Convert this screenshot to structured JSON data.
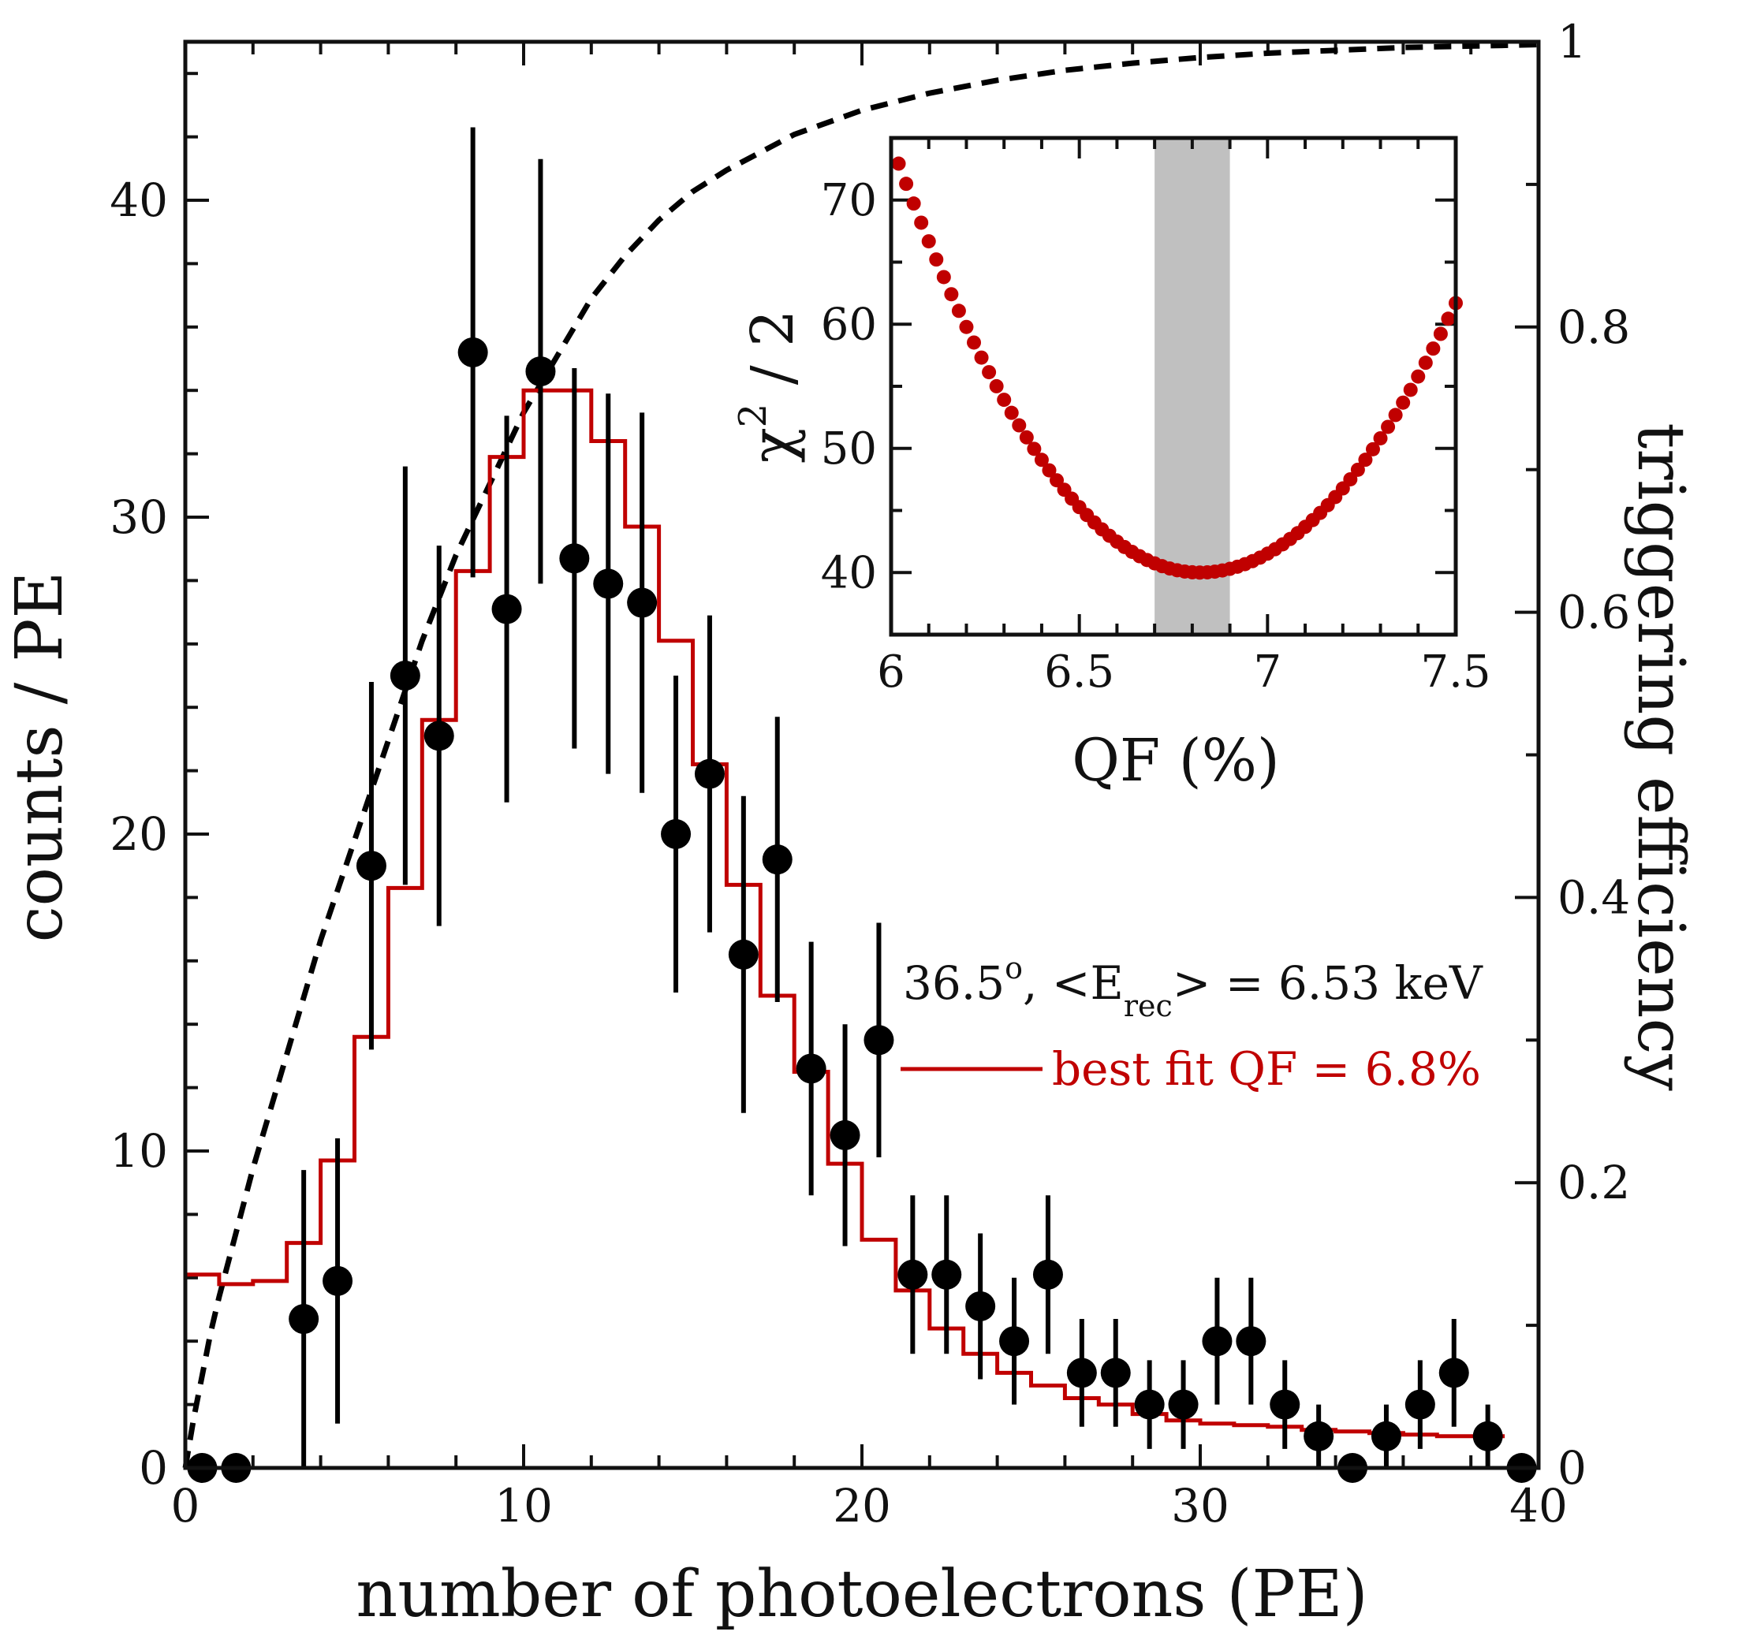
{
  "chart_data": [
    {
      "id": "main",
      "type": "scatter",
      "xlabel": "number of photoelectrons (PE)",
      "ylabel": "counts / PE",
      "y2label": "triggering efficiency",
      "xlim": [
        0,
        40
      ],
      "ylim": [
        0,
        45
      ],
      "y2lim": [
        0,
        1
      ],
      "xticks": [
        "0",
        "10",
        "20",
        "30",
        "40"
      ],
      "yticks": [
        "0",
        "10",
        "20",
        "30",
        "40"
      ],
      "y2ticks": [
        "0",
        "0.2",
        "0.4",
        "0.6",
        "0.8",
        "1"
      ],
      "annotation": {
        "prefix": "36.5",
        "degree": "o",
        "mid": ", <E",
        "sub": "rec",
        "suffix": ">  = 6.53 keV"
      },
      "legend_label": "best fit QF = 6.8%",
      "colors": {
        "fit": "#c00000",
        "data": "#000000",
        "efficiency": "#000000"
      },
      "series": [
        {
          "name": "data",
          "type": "scatter_errorbar",
          "x": [
            0.5,
            1.5,
            3.5,
            4.5,
            5.5,
            6.5,
            7.5,
            8.5,
            9.5,
            10.5,
            11.5,
            12.5,
            13.5,
            14.5,
            15.5,
            16.5,
            17.5,
            18.5,
            19.5,
            20.5,
            21.5,
            22.5,
            23.5,
            24.5,
            25.5,
            26.5,
            27.5,
            28.5,
            29.5,
            30.5,
            31.5,
            32.5,
            33.5,
            34.5,
            35.5,
            36.5,
            37.5,
            38.5,
            39.5
          ],
          "y": [
            0,
            0,
            4.7,
            5.9,
            19.0,
            25.0,
            23.1,
            35.2,
            27.1,
            34.6,
            28.7,
            27.9,
            27.3,
            20.0,
            21.9,
            16.2,
            19.2,
            12.6,
            10.5,
            13.5,
            6.1,
            6.1,
            5.1,
            4.0,
            6.1,
            3.0,
            3.0,
            2.0,
            2.0,
            4.0,
            4.0,
            2.0,
            1.0,
            0,
            1.0,
            2.0,
            3.0,
            1.0,
            0
          ],
          "yerr": [
            0,
            0,
            4.7,
            4.5,
            5.8,
            6.6,
            6.0,
            7.1,
            6.1,
            6.7,
            6.0,
            6.0,
            6.0,
            5.0,
            5.0,
            5.0,
            4.5,
            4.0,
            3.5,
            3.7,
            2.5,
            2.5,
            2.3,
            2.0,
            2.5,
            1.7,
            1.7,
            1.4,
            1.4,
            2.0,
            2.0,
            1.4,
            1.0,
            0,
            1.0,
            1.4,
            1.7,
            1.0,
            0
          ]
        },
        {
          "name": "best fit QF = 6.8%",
          "type": "step",
          "edges": [
            0,
            1,
            2,
            3,
            4,
            5,
            6,
            7,
            8,
            9,
            10,
            11,
            12,
            13,
            14,
            15,
            16,
            17,
            18,
            19,
            20,
            21,
            22,
            23,
            24,
            25,
            26,
            27,
            28,
            29,
            30,
            31,
            32,
            33,
            34,
            35,
            36,
            37,
            38,
            39
          ],
          "values": [
            6.1,
            5.8,
            5.9,
            7.1,
            9.7,
            13.6,
            18.3,
            23.6,
            28.3,
            31.9,
            34.0,
            34.0,
            32.4,
            29.7,
            26.1,
            22.2,
            18.4,
            14.9,
            12.5,
            9.6,
            7.2,
            5.6,
            4.4,
            3.6,
            3.0,
            2.6,
            2.2,
            2.0,
            1.7,
            1.5,
            1.4,
            1.35,
            1.3,
            1.2,
            1.15,
            1.1,
            1.05,
            1.0,
            1.0
          ]
        },
        {
          "name": "triggering efficiency",
          "type": "line_dashed",
          "axis": "y2",
          "x": [
            0,
            0.25,
            0.5,
            0.75,
            1,
            1.5,
            2,
            3,
            4,
            5,
            6,
            7,
            8,
            9,
            10,
            11,
            12,
            13,
            14,
            15,
            16,
            18,
            20,
            22,
            24,
            26,
            28,
            30,
            32,
            34,
            36,
            38,
            40
          ],
          "y": [
            0,
            0.035,
            0.065,
            0.095,
            0.12,
            0.165,
            0.21,
            0.29,
            0.37,
            0.44,
            0.51,
            0.58,
            0.64,
            0.69,
            0.74,
            0.78,
            0.82,
            0.85,
            0.875,
            0.895,
            0.91,
            0.935,
            0.952,
            0.964,
            0.973,
            0.98,
            0.985,
            0.989,
            0.992,
            0.994,
            0.996,
            0.997,
            0.998
          ]
        }
      ]
    },
    {
      "id": "inset",
      "type": "scatter",
      "xlabel": "QF (%)",
      "ylabel_main": "χ",
      "ylabel_sup": "2",
      "ylabel_tail": " / 2",
      "xlim": [
        6,
        7.5
      ],
      "ylim": [
        35,
        75
      ],
      "xticks": [
        "6",
        "6.5",
        "7",
        "7.5"
      ],
      "yticks": [
        "40",
        "50",
        "60",
        "70"
      ],
      "shaded_band": [
        6.7,
        6.9
      ],
      "colors": {
        "points": "#c00000",
        "band": "#c0c0c0"
      },
      "curve": {
        "minimum_qf": 6.82,
        "minimum_chi2_half": 40.0,
        "qf_start": 6.02,
        "qf_end": 7.5,
        "qf_step": 0.02,
        "value_at_6": 74.6,
        "value_at_7_5": 61.7
      }
    }
  ]
}
